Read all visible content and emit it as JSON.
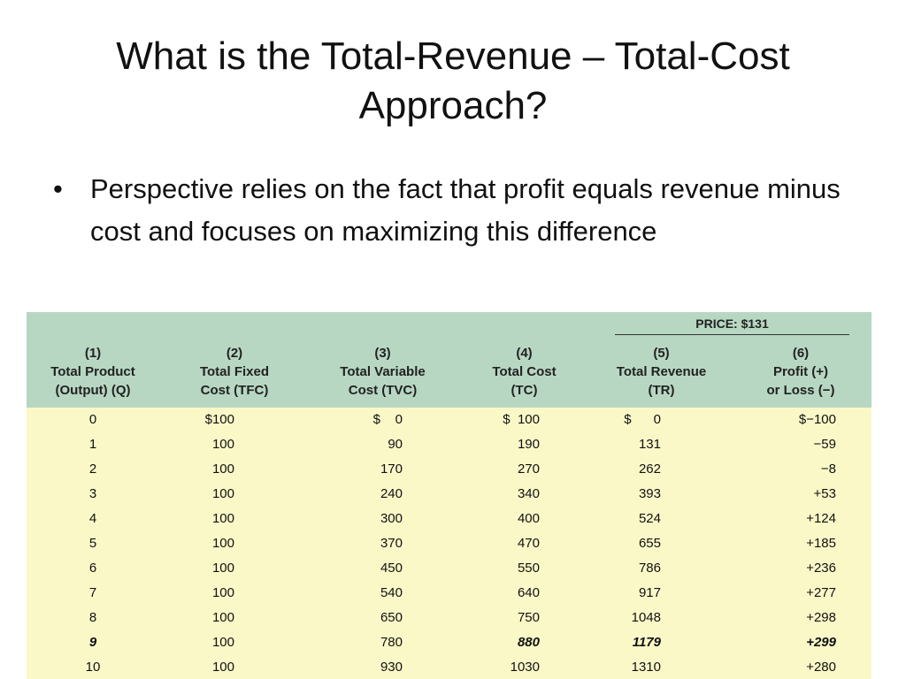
{
  "slide": {
    "title": "What is the Total-Revenue – Total-Cost Approach?",
    "bullet": "Perspective relies on the fact that profit equals revenue minus cost and focuses on maximizing this difference"
  },
  "table": {
    "price_label": "PRICE: $131",
    "headers": [
      {
        "num": "(1)",
        "line1": "Total Product",
        "line2": "(Output) (Q)"
      },
      {
        "num": "(2)",
        "line1": "Total Fixed",
        "line2": "Cost (TFC)"
      },
      {
        "num": "(3)",
        "line1": "Total Variable",
        "line2": "Cost (TVC)"
      },
      {
        "num": "(4)",
        "line1": "Total Cost",
        "line2": "(TC)"
      },
      {
        "num": "(5)",
        "line1": "Total Revenue",
        "line2": "(TR)"
      },
      {
        "num": "(6)",
        "line1": "Profit (+)",
        "line2": "or Loss (−)"
      }
    ],
    "rows": [
      [
        "0",
        "$100",
        "$    0",
        "$  100",
        "$      0",
        "$−100"
      ],
      [
        "1",
        "100",
        "90",
        "190",
        "131",
        "−59"
      ],
      [
        "2",
        "100",
        "170",
        "270",
        "262",
        "−8"
      ],
      [
        "3",
        "100",
        "240",
        "340",
        "393",
        "+53"
      ],
      [
        "4",
        "100",
        "300",
        "400",
        "524",
        "+124"
      ],
      [
        "5",
        "100",
        "370",
        "470",
        "655",
        "+185"
      ],
      [
        "6",
        "100",
        "450",
        "550",
        "786",
        "+236"
      ],
      [
        "7",
        "100",
        "540",
        "640",
        "917",
        "+277"
      ],
      [
        "8",
        "100",
        "650",
        "750",
        "1048",
        "+298"
      ],
      [
        "9",
        "100",
        "780",
        "880",
        "1179",
        "+299"
      ],
      [
        "10",
        "100",
        "930",
        "1030",
        "1310",
        "+280"
      ]
    ],
    "highlight_row_index": 9
  }
}
